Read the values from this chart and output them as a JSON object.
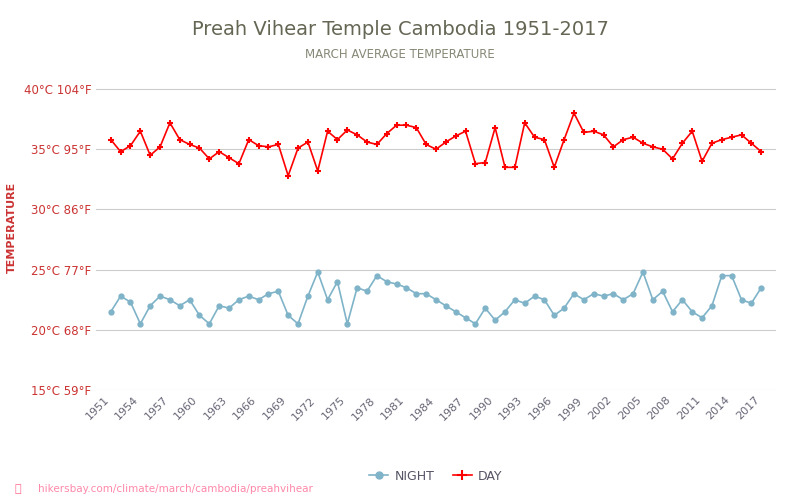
{
  "title": "Preah Vihear Temple Cambodia 1951-2017",
  "subtitle": "MARCH AVERAGE TEMPERATURE",
  "ylabel": "TEMPERATURE",
  "watermark": "hikersbay.com/climate/march/cambodia/preahvihear",
  "background_color": "#ffffff",
  "title_color": "#666655",
  "subtitle_color": "#888877",
  "ylabel_color": "#cc3333",
  "grid_color": "#cccccc",
  "years": [
    1951,
    1952,
    1953,
    1954,
    1955,
    1956,
    1957,
    1958,
    1959,
    1960,
    1961,
    1962,
    1963,
    1964,
    1965,
    1966,
    1967,
    1968,
    1969,
    1970,
    1971,
    1972,
    1973,
    1974,
    1975,
    1976,
    1977,
    1978,
    1979,
    1980,
    1981,
    1982,
    1983,
    1984,
    1985,
    1986,
    1987,
    1988,
    1989,
    1990,
    1991,
    1992,
    1993,
    1994,
    1995,
    1996,
    1997,
    1998,
    1999,
    2000,
    2001,
    2002,
    2003,
    2004,
    2005,
    2006,
    2007,
    2008,
    2009,
    2010,
    2011,
    2012,
    2013,
    2014,
    2015,
    2016,
    2017
  ],
  "day_temps": [
    35.8,
    34.8,
    35.3,
    36.5,
    34.5,
    35.2,
    37.2,
    35.8,
    35.4,
    35.1,
    34.2,
    34.8,
    34.3,
    33.8,
    35.8,
    35.3,
    35.2,
    35.4,
    32.8,
    35.1,
    35.6,
    33.2,
    36.5,
    35.8,
    36.6,
    36.2,
    35.6,
    35.4,
    36.3,
    37.0,
    37.0,
    36.8,
    35.4,
    35.0,
    35.6,
    36.1,
    36.5,
    33.8,
    33.9,
    36.8,
    33.5,
    33.5,
    37.2,
    36.0,
    35.8,
    33.5,
    35.8,
    38.0,
    36.4,
    36.5,
    36.2,
    35.2,
    35.8,
    36.0,
    35.5,
    35.2,
    35.0,
    34.2,
    35.5,
    36.5,
    34.0,
    35.5,
    35.8,
    36.0,
    36.2,
    35.5,
    34.8
  ],
  "night_temps": [
    21.5,
    22.8,
    22.3,
    20.5,
    22.0,
    22.8,
    22.5,
    22.0,
    22.5,
    21.2,
    20.5,
    22.0,
    21.8,
    22.5,
    22.8,
    22.5,
    23.0,
    23.2,
    21.2,
    20.5,
    22.8,
    24.8,
    22.5,
    24.0,
    20.5,
    23.5,
    23.2,
    24.5,
    24.0,
    23.8,
    23.5,
    23.0,
    23.0,
    22.5,
    22.0,
    21.5,
    21.0,
    20.5,
    21.8,
    20.8,
    21.5,
    22.5,
    22.2,
    22.8,
    22.5,
    21.2,
    21.8,
    23.0,
    22.5,
    23.0,
    22.8,
    23.0,
    22.5,
    23.0,
    24.8,
    22.5,
    23.2,
    21.5,
    22.5,
    21.5,
    21.0,
    22.0,
    24.5,
    24.5,
    22.5,
    22.2,
    23.5
  ],
  "day_color": "#ff0000",
  "night_color": "#7fb3c8",
  "ylim_min": 15,
  "ylim_max": 42,
  "yticks_c": [
    15,
    20,
    25,
    30,
    35,
    40
  ],
  "yticks_f": [
    59,
    68,
    77,
    86,
    95,
    104
  ],
  "xtick_years": [
    1951,
    1954,
    1957,
    1960,
    1963,
    1966,
    1969,
    1972,
    1975,
    1978,
    1981,
    1984,
    1987,
    1990,
    1993,
    1996,
    1999,
    2002,
    2005,
    2008,
    2011,
    2014,
    2017
  ],
  "xlim_min": 1949.5,
  "xlim_max": 2018.5
}
